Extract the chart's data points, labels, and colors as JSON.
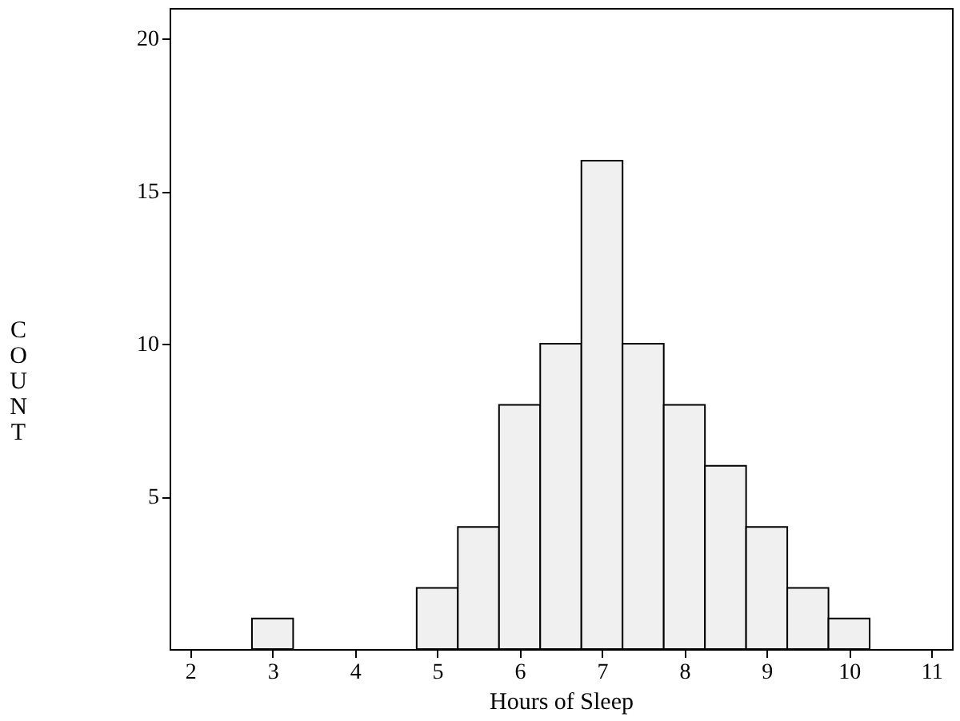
{
  "chart_data": {
    "type": "histogram",
    "xlabel": "Hours of Sleep",
    "ylabel": "COUNT",
    "bins": [
      2.75,
      3.25,
      3.75,
      4.25,
      4.75,
      5.25,
      5.75,
      6.25,
      6.75,
      7.25,
      7.75,
      8.25,
      8.75,
      9.25,
      9.75,
      10.25
    ],
    "values": [
      1,
      0,
      0,
      0,
      2,
      4,
      8,
      10,
      16,
      10,
      8,
      6,
      4,
      2,
      1
    ],
    "color": "#f0f0f0",
    "xlim": [
      1.75,
      11.25
    ],
    "xticks": [
      2,
      3,
      4,
      5,
      6,
      7,
      8,
      9,
      10,
      11
    ],
    "ylim": [
      0,
      21
    ],
    "yticks": [
      5,
      10,
      15,
      20
    ],
    "grid": false
  }
}
